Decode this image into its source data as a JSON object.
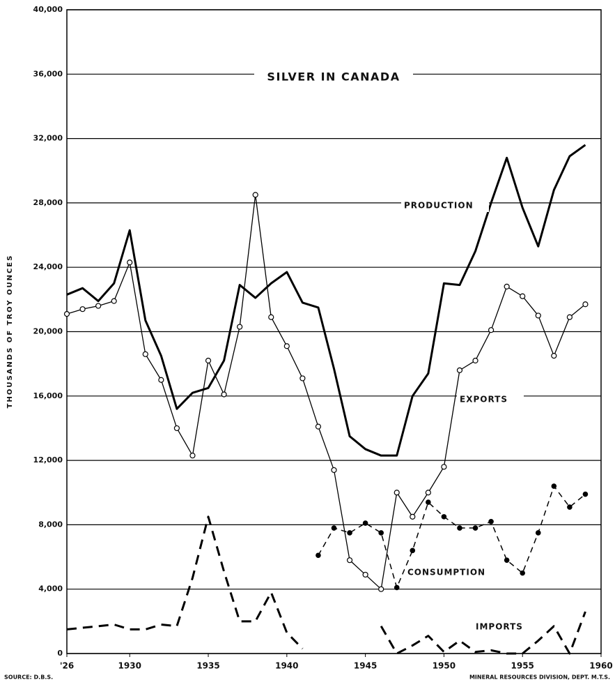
{
  "chart_data": {
    "type": "line",
    "title": "SILVER IN CANADA",
    "ylabel": "THOUSANDS OF TROY OUNCES",
    "annotations": [
      "SOURCE: D.B.S.",
      "MINERAL RESOURCES DIVISION, DEPT. M.T.S."
    ],
    "x": [
      1926,
      1927,
      1928,
      1929,
      1930,
      1931,
      1932,
      1933,
      1934,
      1935,
      1936,
      1937,
      1938,
      1939,
      1940,
      1941,
      1942,
      1943,
      1944,
      1945,
      1946,
      1947,
      1948,
      1949,
      1950,
      1951,
      1952,
      1953,
      1954,
      1955,
      1956,
      1957,
      1958,
      1959
    ],
    "xlim": [
      1926,
      1960
    ],
    "xticks": [
      {
        "value": 1926,
        "label": "'26"
      },
      1930,
      1935,
      1940,
      1945,
      1950,
      1955,
      1960
    ],
    "ylim": [
      0,
      40000
    ],
    "yticks": [
      0,
      {
        "value": 4000,
        "label": "4,000"
      },
      {
        "value": 8000,
        "label": "8,000"
      },
      {
        "value": 12000,
        "label": "12,000"
      },
      {
        "value": 16000,
        "label": "16,000"
      },
      {
        "value": 20000,
        "label": "20,000"
      },
      {
        "value": 24000,
        "label": "24,000"
      },
      {
        "value": 28000,
        "label": "28,000"
      },
      {
        "value": 32000,
        "label": "32,000"
      },
      {
        "value": 36000,
        "label": "36,000"
      },
      {
        "value": 40000,
        "label": "40,000"
      }
    ],
    "grid": true,
    "series": [
      {
        "name": "PRODUCTION",
        "color": "#000000",
        "width": 3,
        "dash": "none",
        "marker": "none",
        "values": [
          22300,
          22700,
          21900,
          23000,
          26300,
          20700,
          18500,
          15200,
          16200,
          16500,
          18200,
          22900,
          22100,
          23000,
          23700,
          21800,
          21500,
          17700,
          13500,
          12700,
          12300,
          12300,
          16000,
          17400,
          23000,
          22900,
          25000,
          28000,
          30800,
          27700,
          25300,
          28800,
          30900,
          31600
        ]
      },
      {
        "name": "EXPORTS",
        "color": "#000000",
        "width": 1.3,
        "dash": "none",
        "marker": "open",
        "values": [
          21100,
          21400,
          21600,
          21900,
          24300,
          18600,
          17000,
          14000,
          12300,
          18200,
          16100,
          20300,
          28500,
          20900,
          19100,
          17100,
          14100,
          11400,
          5800,
          4900,
          4000,
          10000,
          8500,
          10000,
          11600,
          17600,
          18200,
          20100,
          22800,
          22200,
          21000,
          18500,
          20900,
          21700
        ]
      },
      {
        "name": "CONSUMPTION",
        "color": "#000000",
        "width": 1.5,
        "dash": "8 6",
        "marker": "filled",
        "values": [
          null,
          null,
          null,
          null,
          null,
          null,
          null,
          null,
          null,
          null,
          null,
          null,
          null,
          null,
          null,
          null,
          6100,
          7800,
          7500,
          8100,
          7500,
          4100,
          6400,
          9400,
          8500,
          7800,
          7800,
          8200,
          5800,
          5000,
          7500,
          10400,
          9100,
          9900
        ]
      },
      {
        "name": "IMPORTS",
        "color": "#000000",
        "width": 3,
        "dash": "14 9",
        "marker": "none",
        "values": [
          1500,
          1600,
          1700,
          1800,
          1500,
          1500,
          1800,
          1700,
          4700,
          8500,
          5100,
          2000,
          2000,
          3800,
          1300,
          300,
          null,
          null,
          null,
          null,
          1700,
          0,
          500,
          1100,
          100,
          800,
          100,
          200,
          0,
          0,
          800,
          1700,
          0,
          2600
        ]
      }
    ]
  }
}
